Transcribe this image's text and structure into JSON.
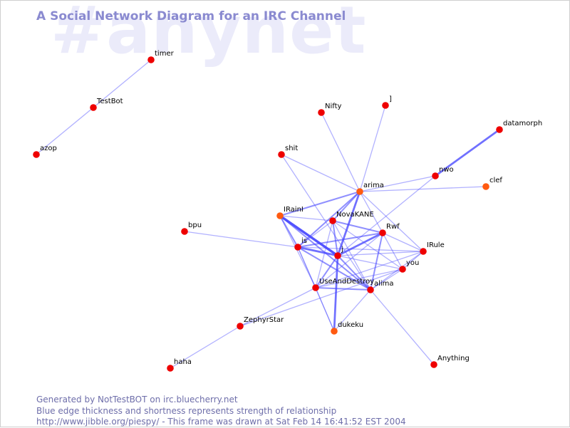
{
  "watermark": "#anynet",
  "title": "A Social Network Diagram for an IRC Channel",
  "footer": {
    "line1": "Generated by NotTestBOT on irc.bluecherry.net",
    "line2": "Blue edge thickness and shortness represents strength of relationship",
    "line3": "http://www.jibble.org/piespy/ - This frame was drawn at Sat Feb 14 16:41:52 EST 2004"
  },
  "colors": {
    "edge": "#4a4aff",
    "node_red": "#ee0000",
    "node_orange": "#ff5a10"
  },
  "nodes": [
    {
      "id": "timer",
      "label": "timer",
      "color": "red"
    },
    {
      "id": "TestBot",
      "label": "TestBot",
      "color": "red"
    },
    {
      "id": "azop",
      "label": "azop",
      "color": "red"
    },
    {
      "id": "Nifty",
      "label": "Nifty",
      "color": "red"
    },
    {
      "id": "]",
      "label": "]",
      "color": "red"
    },
    {
      "id": "datamorph",
      "label": "datamorph",
      "color": "red"
    },
    {
      "id": "shit",
      "label": "shit",
      "color": "red"
    },
    {
      "id": "nwo",
      "label": "nwo",
      "color": "red"
    },
    {
      "id": "clef",
      "label": "clef",
      "color": "orange"
    },
    {
      "id": "arima",
      "label": "arima",
      "color": "orange"
    },
    {
      "id": "IRainI",
      "label": "IRainI",
      "color": "orange"
    },
    {
      "id": "NovaKANE",
      "label": "NovaKANE",
      "color": "red"
    },
    {
      "id": "bpu",
      "label": "bpu",
      "color": "red"
    },
    {
      "id": "Rwf",
      "label": "Rwf",
      "color": "red"
    },
    {
      "id": "is",
      "label": "is",
      "color": "red"
    },
    {
      "id": "j",
      "label": "j",
      "color": "red"
    },
    {
      "id": "IRule",
      "label": "IRule",
      "color": "red"
    },
    {
      "id": "you",
      "label": "you",
      "color": "red"
    },
    {
      "id": "UseAndDestroy",
      "label": "UseAndDestroy",
      "color": "red"
    },
    {
      "id": "alima",
      "label": "alima",
      "color": "red"
    },
    {
      "id": "ZephyrStar",
      "label": "ZephyrStar",
      "color": "red"
    },
    {
      "id": "dukeku",
      "label": "dukeku",
      "color": "orange"
    },
    {
      "id": "haha",
      "label": "haha",
      "color": "red"
    },
    {
      "id": "Anything",
      "label": "Anything",
      "color": "red"
    }
  ],
  "edges": [
    {
      "from": "timer",
      "to": "TestBot",
      "weight": 1
    },
    {
      "from": "TestBot",
      "to": "azop",
      "weight": 1
    },
    {
      "from": "Nifty",
      "to": "arima",
      "weight": 1
    },
    {
      "from": "]",
      "to": "arima",
      "weight": 1
    },
    {
      "from": "datamorph",
      "to": "nwo",
      "weight": 3
    },
    {
      "from": "nwo",
      "to": "arima",
      "weight": 1
    },
    {
      "from": "nwo",
      "to": "j",
      "weight": 1
    },
    {
      "from": "clef",
      "to": "arima",
      "weight": 1
    },
    {
      "from": "shit",
      "to": "arima",
      "weight": 1
    },
    {
      "from": "shit",
      "to": "alima",
      "weight": 1
    },
    {
      "from": "arima",
      "to": "IRainI",
      "weight": 2
    },
    {
      "from": "arima",
      "to": "NovaKANE",
      "weight": 2
    },
    {
      "from": "arima",
      "to": "j",
      "weight": 3
    },
    {
      "from": "arima",
      "to": "is",
      "weight": 2
    },
    {
      "from": "arima",
      "to": "Rwf",
      "weight": 1
    },
    {
      "from": "arima",
      "to": "IRule",
      "weight": 1
    },
    {
      "from": "IRainI",
      "to": "j",
      "weight": 4
    },
    {
      "from": "IRainI",
      "to": "is",
      "weight": 2
    },
    {
      "from": "IRainI",
      "to": "NovaKANE",
      "weight": 1
    },
    {
      "from": "IRainI",
      "to": "UseAndDestroy",
      "weight": 1
    },
    {
      "from": "IRainI",
      "to": "alima",
      "weight": 2
    },
    {
      "from": "NovaKANE",
      "to": "j",
      "weight": 2
    },
    {
      "from": "NovaKANE",
      "to": "Rwf",
      "weight": 2
    },
    {
      "from": "NovaKANE",
      "to": "is",
      "weight": 1
    },
    {
      "from": "NovaKANE",
      "to": "alima",
      "weight": 1
    },
    {
      "from": "NovaKANE",
      "to": "you",
      "weight": 1
    },
    {
      "from": "NovaKANE",
      "to": "UseAndDestroy",
      "weight": 1
    },
    {
      "from": "bpu",
      "to": "is",
      "weight": 1
    },
    {
      "from": "Rwf",
      "to": "j",
      "weight": 3
    },
    {
      "from": "Rwf",
      "to": "is",
      "weight": 2
    },
    {
      "from": "Rwf",
      "to": "you",
      "weight": 1
    },
    {
      "from": "Rwf",
      "to": "alima",
      "weight": 2
    },
    {
      "from": "Rwf",
      "to": "UseAndDestroy",
      "weight": 1
    },
    {
      "from": "Rwf",
      "to": "IRule",
      "weight": 1
    },
    {
      "from": "is",
      "to": "j",
      "weight": 3
    },
    {
      "from": "is",
      "to": "alima",
      "weight": 2
    },
    {
      "from": "is",
      "to": "UseAndDestroy",
      "weight": 1
    },
    {
      "from": "is",
      "to": "IRule",
      "weight": 1
    },
    {
      "from": "is",
      "to": "dukeku",
      "weight": 1
    },
    {
      "from": "j",
      "to": "UseAndDestroy",
      "weight": 2
    },
    {
      "from": "j",
      "to": "alima",
      "weight": 2
    },
    {
      "from": "j",
      "to": "IRule",
      "weight": 1
    },
    {
      "from": "j",
      "to": "you",
      "weight": 1
    },
    {
      "from": "j",
      "to": "dukeku",
      "weight": 3
    },
    {
      "from": "UseAndDestroy",
      "to": "alima",
      "weight": 2
    },
    {
      "from": "UseAndDestroy",
      "to": "dukeku",
      "weight": 1
    },
    {
      "from": "UseAndDestroy",
      "to": "ZephyrStar",
      "weight": 1
    },
    {
      "from": "UseAndDestroy",
      "to": "IRule",
      "weight": 1
    },
    {
      "from": "UseAndDestroy",
      "to": "you",
      "weight": 1
    },
    {
      "from": "alima",
      "to": "IRule",
      "weight": 1
    },
    {
      "from": "alima",
      "to": "dukeku",
      "weight": 1
    },
    {
      "from": "alima",
      "to": "Anything",
      "weight": 1
    },
    {
      "from": "alima",
      "to": "you",
      "weight": 1
    },
    {
      "from": "you",
      "to": "IRule",
      "weight": 1
    },
    {
      "from": "ZephyrStar",
      "to": "haha",
      "weight": 1
    },
    {
      "from": "ZephyrStar",
      "to": "you",
      "weight": 1
    }
  ]
}
